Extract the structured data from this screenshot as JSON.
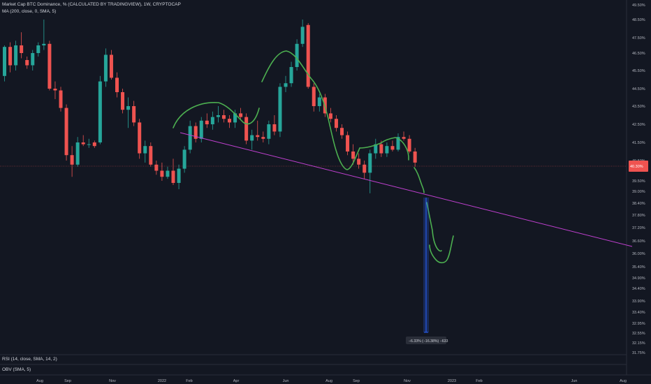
{
  "symbol_title": "Market Cap BTC Dominance, % (CALCULATED BY TRADINGVIEW), 1W, CRYPTOCAP",
  "indicator_ma": "MA (200, close, 0, SMA, 5)",
  "indicator_rsi": "RSI (14, close, SMA, 14, 2)",
  "indicator_obv": "OBV (SMA, 5)",
  "measure_label": "−6.33% (−16.38%) −633",
  "colors": {
    "background": "#131722",
    "up": "#26a69a",
    "down": "#ef5350",
    "drawing": "#4caf50",
    "trendline": "#c040d0",
    "measure": "#2962ff",
    "text": "#b2b5be"
  },
  "chart_data": {
    "type": "candlestick",
    "title": "Market Cap BTC Dominance, % (CALCULATED BY TRADINGVIEW), 1W, CRYPTOCAP",
    "y_axis": {
      "unit": "%",
      "ticks": [
        "49.50%",
        "48.50%",
        "47.50%",
        "46.50%",
        "45.50%",
        "44.50%",
        "43.50%",
        "42.50%",
        "41.50%",
        "40.50%",
        "39.50%",
        "39.00%",
        "38.40%",
        "37.80%",
        "37.20%",
        "36.60%",
        "36.00%",
        "35.40%",
        "34.90%",
        "34.40%",
        "33.90%",
        "33.40%",
        "32.95%",
        "32.55%",
        "32.15%",
        "31.75%"
      ],
      "scale": "log"
    },
    "x_axis": {
      "ticks": [
        "Aug",
        "Sep",
        "Nov",
        "2022",
        "Feb",
        "Apr",
        "Jun",
        "Aug",
        "Sep",
        "Nov",
        "2023",
        "Feb",
        "Jun",
        "Aug"
      ]
    },
    "current_price_label": "40.30%",
    "candles": [
      {
        "x": "Jul 2021",
        "o": 45.2,
        "h": 47.0,
        "l": 44.9,
        "c": 46.9
      },
      {
        "x": "Jul 2021",
        "o": 46.9,
        "h": 47.2,
        "l": 45.4,
        "c": 45.8
      },
      {
        "x": "Jul 2021",
        "o": 45.8,
        "h": 47.3,
        "l": 45.5,
        "c": 47.0
      },
      {
        "x": "Jul 2021",
        "o": 47.0,
        "h": 47.8,
        "l": 46.2,
        "c": 46.5
      },
      {
        "x": "Aug 2021",
        "o": 46.1,
        "h": 46.3,
        "l": 45.6,
        "c": 45.8
      },
      {
        "x": "Aug 2021",
        "o": 45.8,
        "h": 46.7,
        "l": 45.5,
        "c": 46.5
      },
      {
        "x": "Aug 2021",
        "o": 46.5,
        "h": 47.2,
        "l": 46.3,
        "c": 47.0
      },
      {
        "x": "Aug 2021",
        "o": 47.0,
        "h": 48.5,
        "l": 46.7,
        "c": 47.1
      },
      {
        "x": "Sep 2021",
        "o": 47.1,
        "h": 47.3,
        "l": 44.4,
        "c": 44.5
      },
      {
        "x": "Sep 2021",
        "o": 44.5,
        "h": 44.9,
        "l": 43.9,
        "c": 44.4
      },
      {
        "x": "Sep 2021",
        "o": 44.4,
        "h": 44.6,
        "l": 43.2,
        "c": 43.4
      },
      {
        "x": "Sep 2021",
        "o": 43.4,
        "h": 43.6,
        "l": 40.5,
        "c": 40.8
      },
      {
        "x": "Oct 2021",
        "o": 40.8,
        "h": 41.3,
        "l": 39.7,
        "c": 40.3
      },
      {
        "x": "Oct 2021",
        "o": 40.3,
        "h": 41.8,
        "l": 40.2,
        "c": 41.5
      },
      {
        "x": "Oct 2021",
        "o": 41.5,
        "h": 41.9,
        "l": 41.3,
        "c": 41.4
      },
      {
        "x": "Oct 2021",
        "o": 41.4,
        "h": 41.7,
        "l": 41.2,
        "c": 41.4
      },
      {
        "x": "Nov 2021",
        "o": 41.5,
        "h": 41.6,
        "l": 41.2,
        "c": 41.3
      },
      {
        "x": "Nov 2021",
        "o": 41.5,
        "h": 45.2,
        "l": 41.4,
        "c": 44.9
      },
      {
        "x": "Nov 2021",
        "o": 44.9,
        "h": 46.8,
        "l": 44.6,
        "c": 46.4
      },
      {
        "x": "Nov 2021",
        "o": 46.4,
        "h": 46.7,
        "l": 45.0,
        "c": 45.1
      },
      {
        "x": "Dec 2021",
        "o": 45.1,
        "h": 45.4,
        "l": 44.0,
        "c": 44.3
      },
      {
        "x": "Dec 2021",
        "o": 44.3,
        "h": 44.5,
        "l": 43.1,
        "c": 43.3
      },
      {
        "x": "Dec 2021",
        "o": 43.3,
        "h": 44.0,
        "l": 42.3,
        "c": 43.5
      },
      {
        "x": "Dec 2021",
        "o": 43.5,
        "h": 43.8,
        "l": 42.4,
        "c": 42.6
      },
      {
        "x": "Jan 2022",
        "o": 42.6,
        "h": 42.8,
        "l": 40.6,
        "c": 40.9
      },
      {
        "x": "Jan 2022",
        "o": 40.9,
        "h": 41.6,
        "l": 40.4,
        "c": 41.3
      },
      {
        "x": "Jan 2022",
        "o": 41.3,
        "h": 41.5,
        "l": 40.2,
        "c": 40.3
      },
      {
        "x": "Jan 2022",
        "o": 40.3,
        "h": 40.5,
        "l": 39.8,
        "c": 40.0
      },
      {
        "x": "Jan 2022",
        "o": 40.0,
        "h": 40.4,
        "l": 39.5,
        "c": 39.7
      },
      {
        "x": "Feb 2022",
        "o": 39.7,
        "h": 40.2,
        "l": 39.6,
        "c": 40.0
      },
      {
        "x": "Feb 2022",
        "o": 40.0,
        "h": 40.6,
        "l": 39.3,
        "c": 39.4
      },
      {
        "x": "Feb 2022",
        "o": 39.4,
        "h": 40.3,
        "l": 39.1,
        "c": 40.1
      },
      {
        "x": "Feb 2022",
        "o": 40.1,
        "h": 41.3,
        "l": 39.9,
        "c": 41.1
      },
      {
        "x": "Mar 2022",
        "o": 41.1,
        "h": 42.7,
        "l": 40.9,
        "c": 42.4
      },
      {
        "x": "Mar 2022",
        "o": 42.4,
        "h": 42.6,
        "l": 41.5,
        "c": 41.7
      },
      {
        "x": "Mar 2022",
        "o": 41.7,
        "h": 42.9,
        "l": 41.5,
        "c": 42.7
      },
      {
        "x": "Mar 2022",
        "o": 42.7,
        "h": 43.1,
        "l": 42.3,
        "c": 42.5
      },
      {
        "x": "Apr 2022",
        "o": 42.5,
        "h": 43.2,
        "l": 42.2,
        "c": 42.9
      },
      {
        "x": "Apr 2022",
        "o": 42.9,
        "h": 43.5,
        "l": 42.6,
        "c": 43.0
      },
      {
        "x": "Apr 2022",
        "o": 43.0,
        "h": 43.3,
        "l": 42.6,
        "c": 42.8
      },
      {
        "x": "Apr 2022",
        "o": 42.8,
        "h": 43.0,
        "l": 42.3,
        "c": 42.6
      },
      {
        "x": "May 2022",
        "o": 42.6,
        "h": 43.3,
        "l": 42.3,
        "c": 43.1
      },
      {
        "x": "May 2022",
        "o": 43.1,
        "h": 43.4,
        "l": 42.8,
        "c": 42.9
      },
      {
        "x": "May 2022",
        "o": 42.9,
        "h": 43.1,
        "l": 41.4,
        "c": 41.6
      },
      {
        "x": "May 2022",
        "o": 41.6,
        "h": 42.2,
        "l": 41.1,
        "c": 41.9
      },
      {
        "x": "Jun 2022",
        "o": 41.9,
        "h": 42.7,
        "l": 41.6,
        "c": 41.8
      },
      {
        "x": "Jun 2022",
        "o": 41.8,
        "h": 42.1,
        "l": 41.5,
        "c": 41.7
      },
      {
        "x": "Jun 2022",
        "o": 41.7,
        "h": 42.7,
        "l": 41.4,
        "c": 42.5
      },
      {
        "x": "Jun 2022",
        "o": 42.5,
        "h": 43.0,
        "l": 41.9,
        "c": 42.1
      },
      {
        "x": "Jul 2022",
        "o": 42.1,
        "h": 44.8,
        "l": 41.8,
        "c": 44.6
      },
      {
        "x": "Jul 2022",
        "o": 44.6,
        "h": 45.2,
        "l": 44.3,
        "c": 44.8
      },
      {
        "x": "Jul 2022",
        "o": 44.8,
        "h": 46.0,
        "l": 44.6,
        "c": 45.7
      },
      {
        "x": "Jul 2022",
        "o": 45.7,
        "h": 47.4,
        "l": 45.5,
        "c": 47.1
      },
      {
        "x": "Aug 2022",
        "o": 47.1,
        "h": 48.5,
        "l": 46.9,
        "c": 48.1
      },
      {
        "x": "Aug 2022",
        "o": 48.2,
        "h": 48.3,
        "l": 44.5,
        "c": 44.6
      },
      {
        "x": "Aug 2022",
        "o": 44.6,
        "h": 44.8,
        "l": 43.2,
        "c": 43.5
      },
      {
        "x": "Aug 2022",
        "o": 43.5,
        "h": 44.2,
        "l": 43.2,
        "c": 44.0
      },
      {
        "x": "Sep 2022",
        "o": 44.0,
        "h": 44.2,
        "l": 42.9,
        "c": 43.1
      },
      {
        "x": "Sep 2022",
        "o": 43.1,
        "h": 43.4,
        "l": 42.6,
        "c": 42.8
      },
      {
        "x": "Sep 2022",
        "o": 42.8,
        "h": 43.0,
        "l": 42.1,
        "c": 42.3
      },
      {
        "x": "Sep 2022",
        "o": 42.3,
        "h": 42.5,
        "l": 41.7,
        "c": 41.9
      },
      {
        "x": "Oct 2022",
        "o": 41.9,
        "h": 42.1,
        "l": 40.8,
        "c": 41.0
      },
      {
        "x": "Oct 2022",
        "o": 41.0,
        "h": 41.4,
        "l": 40.3,
        "c": 40.6
      },
      {
        "x": "Oct 2022",
        "o": 40.6,
        "h": 40.9,
        "l": 40.1,
        "c": 40.3
      },
      {
        "x": "Oct 2022",
        "o": 40.3,
        "h": 40.5,
        "l": 39.6,
        "c": 39.9
      },
      {
        "x": "Oct 2022",
        "o": 39.9,
        "h": 41.1,
        "l": 38.9,
        "c": 40.9
      },
      {
        "x": "Nov 2022",
        "o": 40.9,
        "h": 41.7,
        "l": 40.6,
        "c": 41.4
      },
      {
        "x": "Nov 2022",
        "o": 41.4,
        "h": 41.6,
        "l": 40.7,
        "c": 40.9
      },
      {
        "x": "Nov 2022",
        "o": 40.9,
        "h": 41.5,
        "l": 40.7,
        "c": 41.3
      },
      {
        "x": "Nov 2022",
        "o": 41.3,
        "h": 41.6,
        "l": 41.0,
        "c": 41.1
      },
      {
        "x": "Dec 2022",
        "o": 41.1,
        "h": 42.0,
        "l": 41.0,
        "c": 41.8
      },
      {
        "x": "Dec 2022",
        "o": 41.8,
        "h": 42.1,
        "l": 41.6,
        "c": 41.7
      },
      {
        "x": "Dec 2022",
        "o": 41.7,
        "h": 41.9,
        "l": 40.9,
        "c": 41.0
      },
      {
        "x": "Dec 2022",
        "o": 41.0,
        "h": 41.2,
        "l": 40.2,
        "c": 40.4
      }
    ]
  }
}
